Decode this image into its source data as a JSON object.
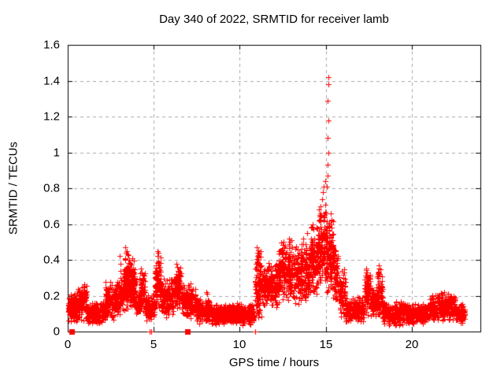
{
  "chart_data": {
    "type": "scatter",
    "title": "Day 340 of 2022, SRMTID for receiver lamb",
    "xlabel": "GPS time / hours",
    "ylabel": "SRMTID / TECUs",
    "xlim": [
      0,
      24
    ],
    "ylim": [
      0,
      1.6
    ],
    "xticks": [
      0,
      5,
      10,
      15,
      20
    ],
    "yticks": [
      0,
      0.2,
      0.4,
      0.6,
      0.8,
      1,
      1.2,
      1.4,
      1.6
    ],
    "xtick_labels": [
      "0",
      "5",
      "10",
      "15",
      "20"
    ],
    "ytick_labels": [
      "0",
      "0.2",
      "0.4",
      "0.6",
      "0.8",
      "1",
      "1.2",
      "1.4",
      "1.6"
    ],
    "grid": true,
    "legend": "none",
    "marker": "plus",
    "marker_color": "#ff0000",
    "grid_color": "#a9a9a9",
    "axis_color": "#000000",
    "background": "#ffffff",
    "seed": 1340,
    "noise_bands": [
      [
        0.02,
        0.6,
        0.05,
        0.22,
        140
      ],
      [
        0.05,
        0.6,
        0.08,
        0.16,
        100
      ],
      [
        0.6,
        1.1,
        0.06,
        0.27,
        110
      ],
      [
        1.1,
        2.2,
        0.04,
        0.17,
        220
      ],
      [
        2.2,
        2.75,
        0.06,
        0.28,
        120
      ],
      [
        2.75,
        3.25,
        0.08,
        0.3,
        110
      ],
      [
        3.25,
        3.95,
        0.1,
        0.44,
        170
      ],
      [
        3.3,
        3.9,
        0.15,
        0.33,
        100
      ],
      [
        3.95,
        4.15,
        0.07,
        0.22,
        40
      ],
      [
        4.15,
        4.5,
        0.08,
        0.35,
        80
      ],
      [
        4.5,
        5.05,
        0.05,
        0.22,
        110
      ],
      [
        5.05,
        5.45,
        0.1,
        0.42,
        90
      ],
      [
        5.45,
        6.15,
        0.07,
        0.3,
        150
      ],
      [
        6.15,
        6.6,
        0.09,
        0.38,
        100
      ],
      [
        6.6,
        7.45,
        0.06,
        0.28,
        170
      ],
      [
        7.45,
        8.35,
        0.04,
        0.2,
        170
      ],
      [
        8.35,
        10.85,
        0.03,
        0.16,
        450
      ],
      [
        8.5,
        10.7,
        0.05,
        0.12,
        250
      ],
      [
        10.85,
        11.3,
        0.05,
        0.47,
        110
      ],
      [
        11.3,
        12.25,
        0.12,
        0.4,
        200
      ],
      [
        12.25,
        13.05,
        0.14,
        0.52,
        180
      ],
      [
        13.05,
        14.05,
        0.15,
        0.5,
        210
      ],
      [
        14.05,
        14.55,
        0.18,
        0.6,
        120
      ],
      [
        14.55,
        15.05,
        0.22,
        0.72,
        130
      ],
      [
        15.05,
        15.45,
        0.18,
        0.66,
        120
      ],
      [
        15.45,
        15.75,
        0.12,
        0.5,
        70
      ],
      [
        15.75,
        16.15,
        0.08,
        0.37,
        80
      ],
      [
        16.15,
        17.25,
        0.04,
        0.2,
        200
      ],
      [
        17.25,
        17.6,
        0.08,
        0.35,
        80
      ],
      [
        17.6,
        17.95,
        0.08,
        0.25,
        90
      ],
      [
        17.95,
        18.3,
        0.05,
        0.37,
        80
      ],
      [
        18.3,
        19.55,
        0.03,
        0.17,
        230
      ],
      [
        19.55,
        21.05,
        0.04,
        0.16,
        280
      ],
      [
        21.05,
        22.55,
        0.05,
        0.22,
        280
      ],
      [
        22.55,
        23.1,
        0.04,
        0.16,
        100
      ]
    ],
    "spike_points": [
      [
        3.04,
        0.42
      ],
      [
        3.05,
        0.38
      ],
      [
        3.06,
        0.34
      ],
      [
        3.06,
        0.3
      ],
      [
        3.33,
        0.41
      ],
      [
        3.36,
        0.47
      ],
      [
        3.39,
        0.44
      ],
      [
        3.43,
        0.45
      ],
      [
        3.5,
        0.43
      ],
      [
        3.55,
        0.4
      ],
      [
        4.25,
        0.35
      ],
      [
        4.3,
        0.33
      ],
      [
        5.2,
        0.45
      ],
      [
        5.22,
        0.42
      ],
      [
        5.26,
        0.39
      ],
      [
        5.29,
        0.44
      ],
      [
        6.3,
        0.38
      ],
      [
        6.36,
        0.36
      ],
      [
        6.42,
        0.34
      ],
      [
        8.05,
        0.22
      ],
      [
        8.1,
        0.21
      ],
      [
        10.95,
        0.38
      ],
      [
        11.0,
        0.47
      ],
      [
        11.03,
        0.44
      ],
      [
        11.06,
        0.42
      ],
      [
        11.1,
        0.4
      ],
      [
        12.55,
        0.5
      ],
      [
        12.62,
        0.48
      ],
      [
        12.85,
        0.52
      ],
      [
        12.88,
        0.49
      ],
      [
        13.7,
        0.52
      ],
      [
        13.92,
        0.55
      ],
      [
        14.2,
        0.58
      ],
      [
        14.26,
        0.6
      ],
      [
        14.31,
        0.57
      ],
      [
        14.62,
        0.62
      ],
      [
        14.68,
        0.66
      ],
      [
        14.72,
        0.7
      ],
      [
        14.78,
        0.74
      ],
      [
        14.82,
        0.78
      ],
      [
        14.9,
        0.81
      ],
      [
        14.96,
        0.84
      ],
      [
        15.08,
        0.81
      ],
      [
        15.1,
        0.93
      ],
      [
        15.12,
        0.87
      ],
      [
        15.12,
        1.29
      ],
      [
        15.13,
        1.08
      ],
      [
        15.14,
        1.42
      ],
      [
        15.15,
        1.0
      ],
      [
        15.16,
        1.38
      ],
      [
        15.17,
        1.18
      ],
      [
        15.3,
        0.66
      ],
      [
        15.33,
        0.62
      ],
      [
        15.36,
        0.58
      ],
      [
        17.32,
        0.31
      ],
      [
        17.35,
        0.35
      ],
      [
        17.38,
        0.33
      ],
      [
        18.08,
        0.37
      ],
      [
        18.1,
        0.35
      ],
      [
        18.13,
        0.32
      ],
      [
        21.9,
        0.22
      ],
      [
        22.1,
        0.21
      ]
    ],
    "zero_plus_markers": [
      4.78,
      4.84,
      10.88
    ],
    "zero_square_markers": [
      0.23,
      6.96
    ]
  }
}
